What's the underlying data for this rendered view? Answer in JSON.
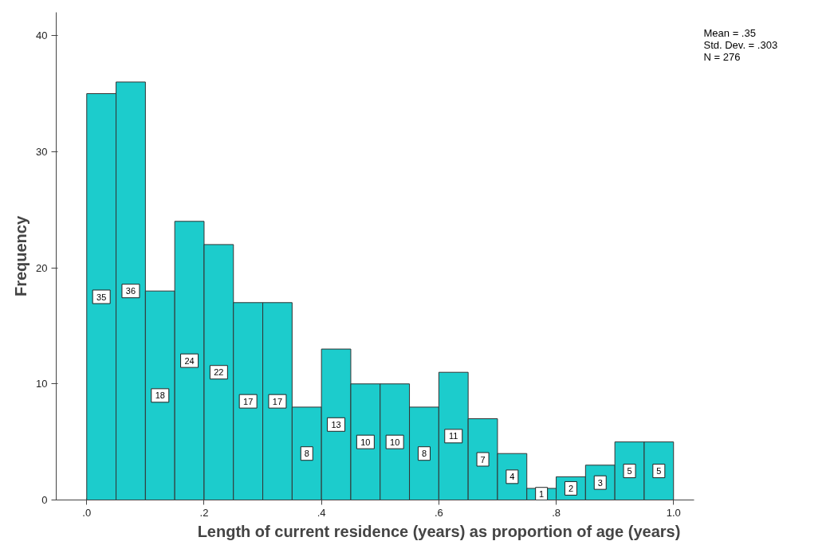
{
  "chart_data": {
    "type": "histogram",
    "xlabel": "Length of current residence (years) as proportion of age (years)",
    "ylabel": "Frequency",
    "bins": [
      0,
      0.05,
      0.1,
      0.15,
      0.2,
      0.25,
      0.3,
      0.35,
      0.4,
      0.45,
      0.5,
      0.55,
      0.6,
      0.65,
      0.7,
      0.75,
      0.8,
      0.85,
      0.9,
      0.95,
      1.0
    ],
    "values": [
      35,
      36,
      18,
      24,
      22,
      17,
      17,
      8,
      13,
      10,
      10,
      8,
      11,
      7,
      4,
      1,
      2,
      3,
      5,
      5
    ],
    "color": "#1ccccc",
    "data_labels": true,
    "grid": false,
    "xlim": [
      -0.052,
      1.035
    ],
    "ylim": [
      0,
      42
    ],
    "xticks": [
      {
        "value": 0,
        "label": ".0"
      },
      {
        "value": 0.2,
        "label": ".2"
      },
      {
        "value": 0.4,
        "label": ".4"
      },
      {
        "value": 0.6,
        "label": ".6"
      },
      {
        "value": 0.8,
        "label": ".8"
      },
      {
        "value": 1.0,
        "label": "1.0"
      }
    ],
    "yticks": [
      0,
      10,
      20,
      30,
      40
    ],
    "annotations": [
      "Mean = .35",
      "Std. Dev. = .303",
      "N = 276"
    ]
  }
}
